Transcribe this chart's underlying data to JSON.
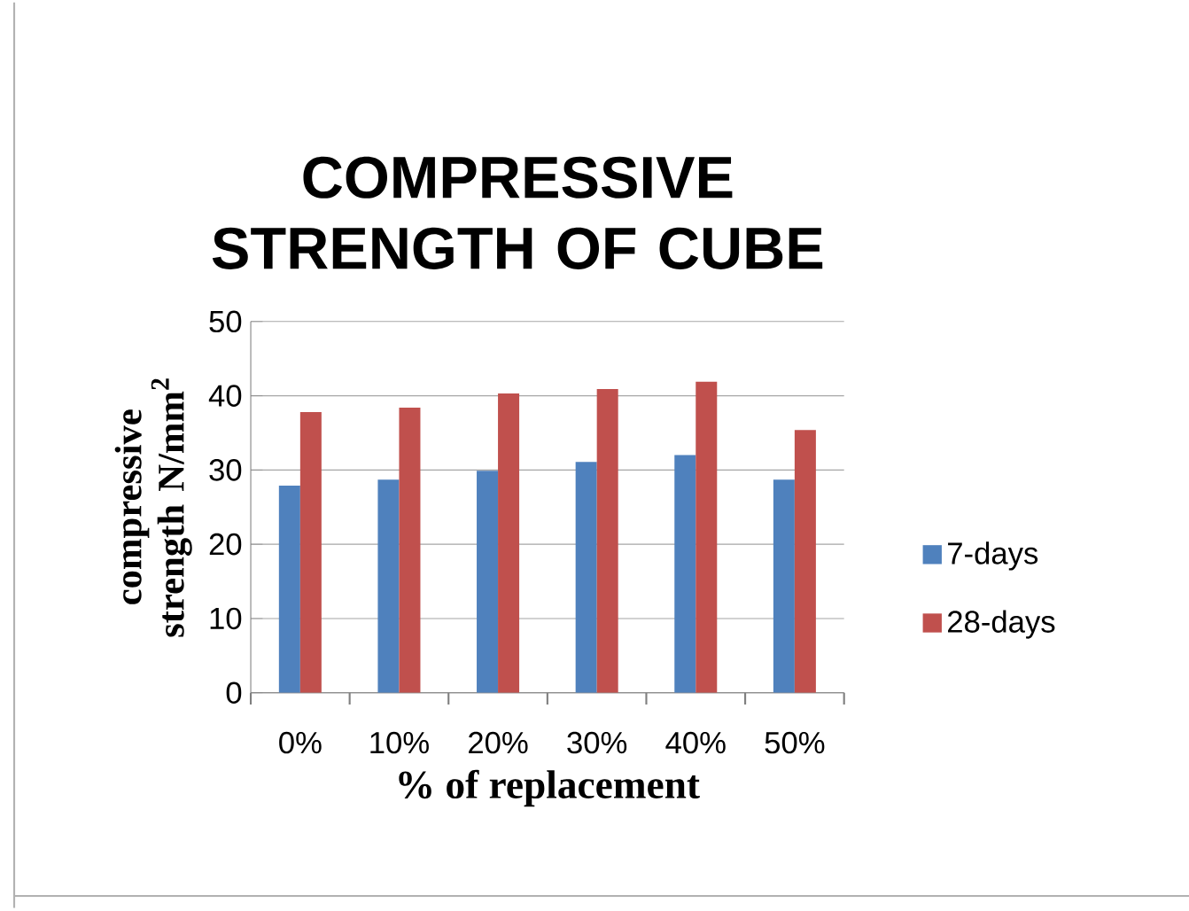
{
  "chart_data": {
    "type": "bar",
    "title": "COMPRESSIVE STRENGTH OF CUBE",
    "xlabel": "% of replacement",
    "ylabel": "compressive strength N/mm$^{2}$",
    "categories": [
      "0%",
      "10%",
      "20%",
      "30%",
      "40%",
      "50%"
    ],
    "series": [
      {
        "name": "7-days",
        "color": "#4f81bd",
        "values": [
          27.9,
          28.7,
          29.9,
          31.1,
          32.0,
          28.7
        ]
      },
      {
        "name": "28-days",
        "color": "#c0504d",
        "values": [
          37.8,
          38.4,
          40.3,
          40.9,
          41.9,
          35.4
        ]
      }
    ],
    "ylim": [
      0,
      50
    ],
    "yticks": [
      0,
      10,
      20,
      30,
      40,
      50
    ],
    "grid": "y",
    "legend": "right"
  }
}
